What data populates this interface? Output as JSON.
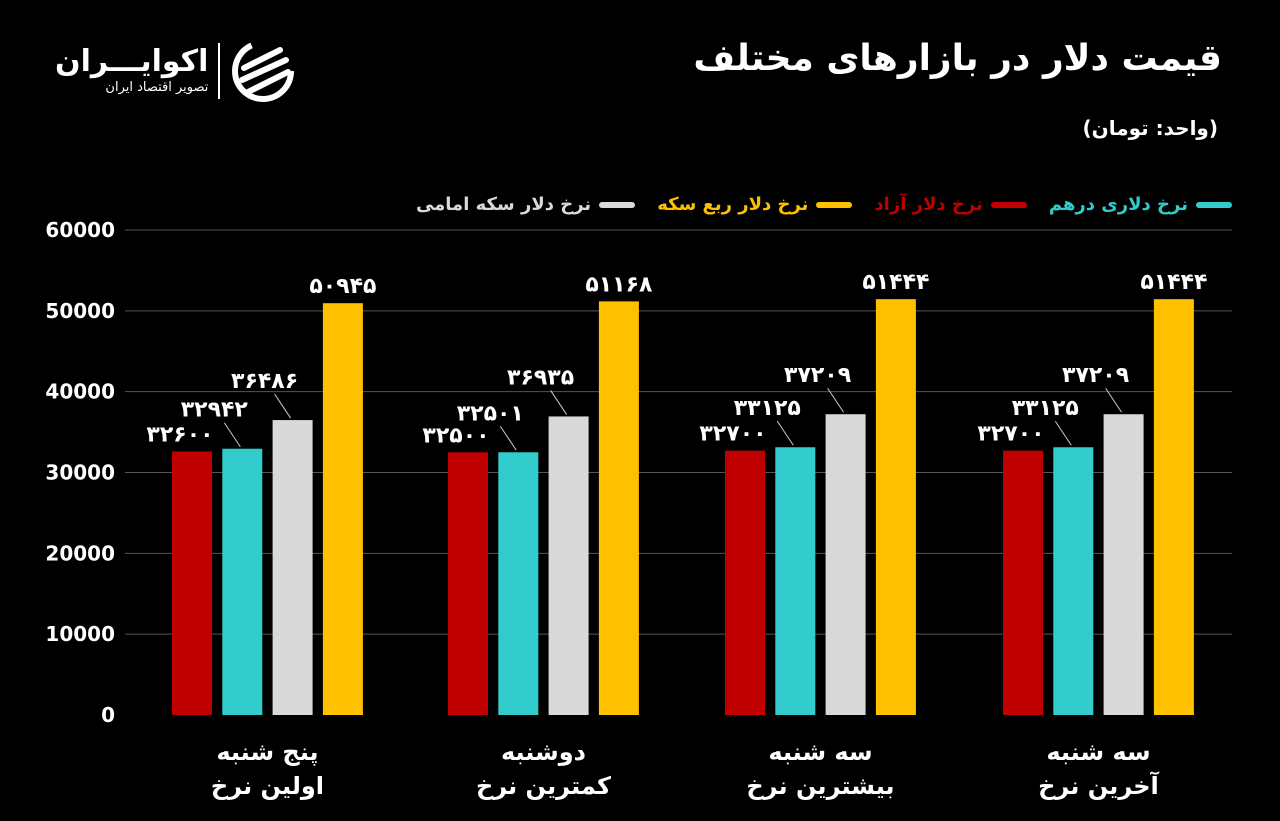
{
  "header": {
    "title": "قیمت دلار در بازارهای مختلف",
    "subtitle": "(واحد: تومان)"
  },
  "logo": {
    "name": "اکوایـــران",
    "tagline": "تصویر اقتصاد ایران"
  },
  "chart_data": {
    "type": "bar",
    "title": "قیمت دلار در بازارهای مختلف",
    "subtitle": "(واحد: تومان)",
    "categories": [
      [
        "پنج شنبه",
        "اولین نرخ"
      ],
      [
        "دوشنبه",
        "کمترین  نرخ"
      ],
      [
        "سه شنبه",
        "بیشترین نرخ"
      ],
      [
        "سه شنبه",
        "آخرین نرخ"
      ]
    ],
    "series": [
      {
        "name": "نرخ دلار آزاد",
        "color": "#c00000",
        "values": [
          32600,
          32500,
          32700,
          32700
        ]
      },
      {
        "name": "نرخ دلاری درهم",
        "color": "#33cccc",
        "values": [
          32942,
          32501,
          33125,
          33125
        ]
      },
      {
        "name": "نرخ دلار سکه امامی",
        "color": "#d9d9d9",
        "values": [
          36486,
          36935,
          37209,
          37209
        ]
      },
      {
        "name": "نرخ دلار ربع سکه",
        "color": "#ffc000",
        "values": [
          50945,
          51168,
          51444,
          51444
        ]
      }
    ],
    "legend_order": [
      1,
      0,
      3,
      2
    ],
    "legend_position": "top",
    "ylim": [
      0,
      60000
    ],
    "yticks": [
      "0",
      "10000",
      "20000",
      "30000",
      "40000",
      "50000",
      "60000"
    ],
    "grid": true,
    "data_labels": "persian-digits"
  }
}
